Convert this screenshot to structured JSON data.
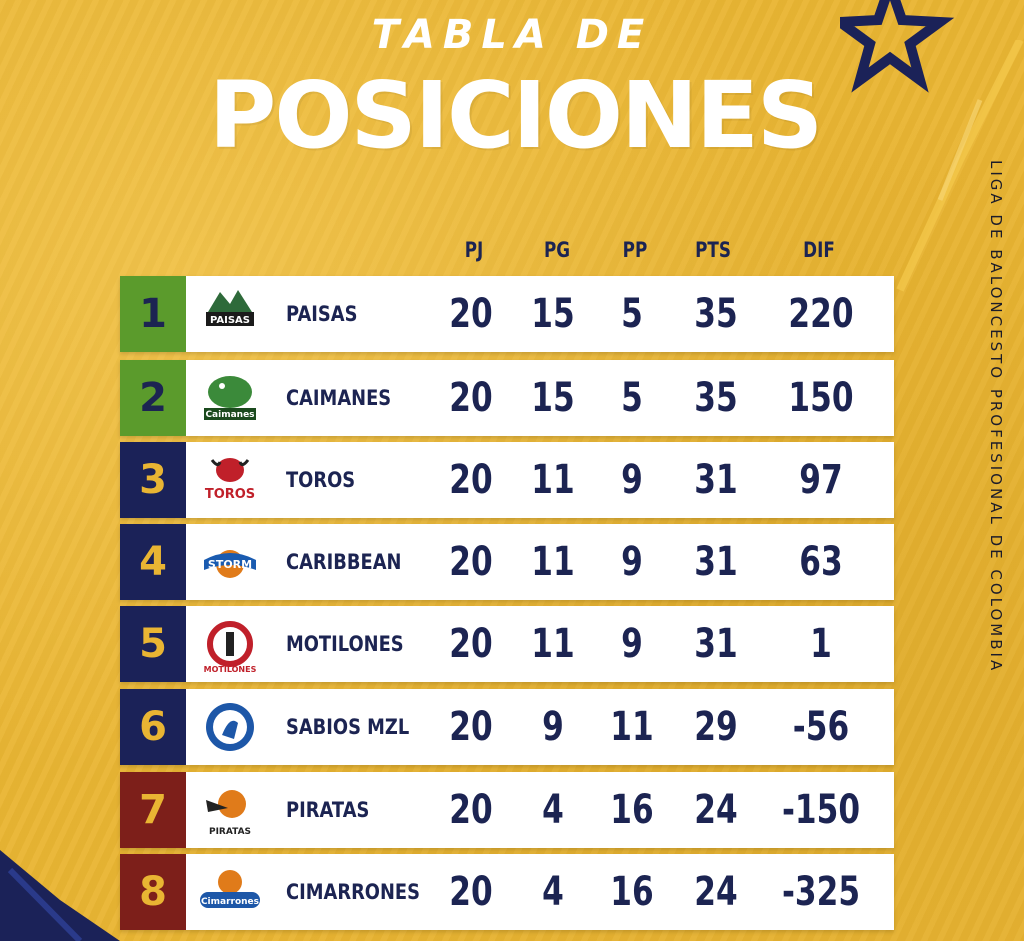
{
  "header": {
    "title_top": "TABLA DE",
    "title_main": "POSICIONES",
    "side_text": "LIGA DE BALONCESTO PROFESIONAL DE COLOMBIA"
  },
  "columns": [
    "PJ",
    "PG",
    "PP",
    "PTS",
    "DIF"
  ],
  "colors": {
    "background": "#e9b533",
    "navy": "#1b2258",
    "green": "#5b9b2c",
    "maroon": "#7d1f1a",
    "text": "#1c2452"
  },
  "teams": [
    {
      "pos": "1",
      "name": "PAISAS",
      "logo": "paisas-logo",
      "pj": "20",
      "pg": "15",
      "pp": "5",
      "pts": "35",
      "dif": "220",
      "band": "green"
    },
    {
      "pos": "2",
      "name": "CAIMANES",
      "logo": "caimanes-logo",
      "pj": "20",
      "pg": "15",
      "pp": "5",
      "pts": "35",
      "dif": "150",
      "band": "green"
    },
    {
      "pos": "3",
      "name": "TOROS",
      "logo": "toros-logo",
      "pj": "20",
      "pg": "11",
      "pp": "9",
      "pts": "31",
      "dif": "97",
      "band": "navy"
    },
    {
      "pos": "4",
      "name": "CARIBBEAN",
      "logo": "caribbean-storm-logo",
      "pj": "20",
      "pg": "11",
      "pp": "9",
      "pts": "31",
      "dif": "63",
      "band": "navy"
    },
    {
      "pos": "5",
      "name": "MOTILONES",
      "logo": "motilones-logo",
      "pj": "20",
      "pg": "11",
      "pp": "9",
      "pts": "31",
      "dif": "1",
      "band": "navy"
    },
    {
      "pos": "6",
      "name": "SABIOS MZL",
      "logo": "sabios-logo",
      "pj": "20",
      "pg": "9",
      "pp": "11",
      "pts": "29",
      "dif": "-56",
      "band": "navy"
    },
    {
      "pos": "7",
      "name": "PIRATAS",
      "logo": "piratas-logo",
      "pj": "20",
      "pg": "4",
      "pp": "16",
      "pts": "24",
      "dif": "-150",
      "band": "maroon"
    },
    {
      "pos": "8",
      "name": "CIMARRONES",
      "logo": "cimarrones-logo",
      "pj": "20",
      "pg": "4",
      "pp": "16",
      "pts": "24",
      "dif": "-325",
      "band": "maroon"
    }
  ]
}
